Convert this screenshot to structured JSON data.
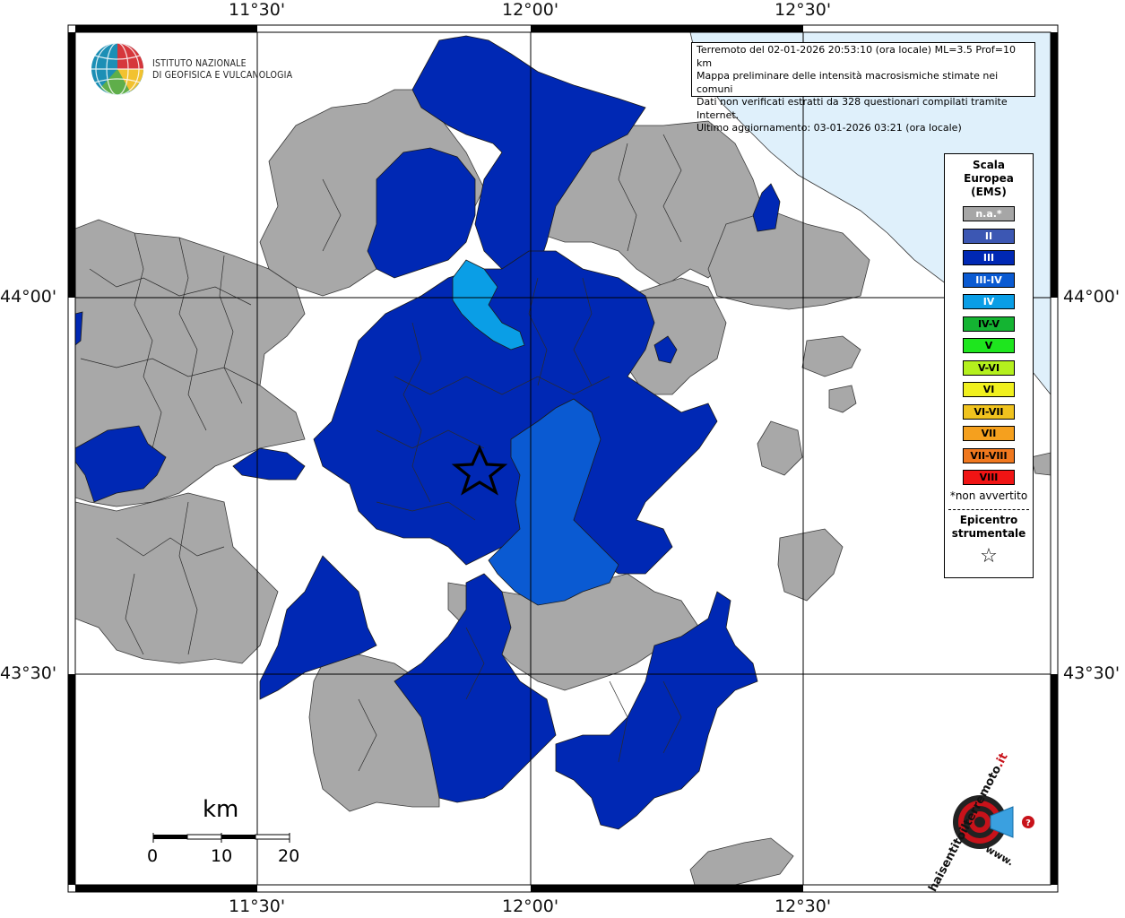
{
  "map": {
    "top_ticks": [
      "11°30'",
      "12°00'",
      "12°30'"
    ],
    "bottom_ticks": [
      "11°30'",
      "12°00'",
      "12°30'"
    ],
    "left_ticks": [
      "44°00'",
      "43°30'"
    ],
    "right_ticks": [
      "44°00'",
      "43°30'"
    ],
    "epicenter_glyph": "☆"
  },
  "logo": {
    "line1": "ISTITUTO NAZIONALE",
    "line2": "DI GEOFISICA E VULCANOLOGIA"
  },
  "info": {
    "line1": "Terremoto del 02-01-2026 20:53:10 (ora locale) ML=3.5 Prof=10 km",
    "line2": "Mappa preliminare delle intensità macrosismiche stimate nei comuni",
    "line3": "Dati non verificati estratti da 328 questionari compilati tramite Internet.",
    "line4": "Ultimo aggiornamento: 03-01-2026 03:21 (ora locale)"
  },
  "legend": {
    "title1": "Scala",
    "title2": "Europea",
    "title3": "(EMS)",
    "items": [
      {
        "label": "n.a.*",
        "color": "#a6a6a6"
      },
      {
        "label": "II",
        "color": "#3c57b3"
      },
      {
        "label": "III",
        "color": "#0028b4"
      },
      {
        "label": "III-IV",
        "color": "#0a5ad2"
      },
      {
        "label": "IV",
        "color": "#0a9ee6"
      },
      {
        "label": "IV-V",
        "color": "#14b432"
      },
      {
        "label": "V",
        "color": "#1ee61e"
      },
      {
        "label": "V-VI",
        "color": "#b4f01e"
      },
      {
        "label": "VI",
        "color": "#f0f01e"
      },
      {
        "label": "VI-VII",
        "color": "#f0c31e"
      },
      {
        "label": "VII",
        "color": "#f5a01e"
      },
      {
        "label": "VII-VIII",
        "color": "#f0781e"
      },
      {
        "label": "VIII",
        "color": "#f01414"
      }
    ],
    "note": "*non avvertito",
    "epi1": "Epicentro",
    "epi2": "strumentale",
    "epi_symbol": "☆"
  },
  "scalebar": {
    "title": "km",
    "labels": [
      "0",
      "10",
      "20"
    ]
  },
  "site_logo": {
    "text1": "haisentitoilterremoto",
    "text2": ".it",
    "url": "www."
  }
}
